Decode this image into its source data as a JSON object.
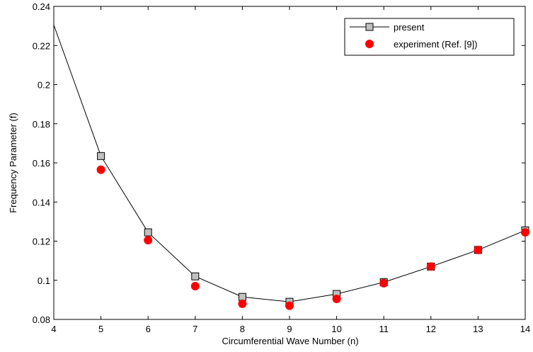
{
  "chart_data": {
    "type": "line",
    "xlabel": "Circumferential Wave Number (n)",
    "ylabel": "Frequency Parameter (f)",
    "xlim": [
      4,
      14
    ],
    "ylim": [
      0.08,
      0.24
    ],
    "x_ticks": [
      4,
      5,
      6,
      7,
      8,
      9,
      10,
      11,
      12,
      13,
      14
    ],
    "x_tick_labels": [
      "4",
      "5",
      "6",
      "7",
      "8",
      "9",
      "10",
      "11",
      "12",
      "13",
      "14"
    ],
    "y_ticks": [
      0.08,
      0.1,
      0.12,
      0.14,
      0.16,
      0.18,
      0.2,
      0.22,
      0.24
    ],
    "y_tick_labels": [
      "0.08",
      "0.1",
      "0.12",
      "0.14",
      "0.16",
      "0.18",
      "0.2",
      "0.22",
      "0.24"
    ],
    "grid": false,
    "legend_position": "top-right",
    "series": [
      {
        "name": "present",
        "style": "line-square",
        "color": "#000000",
        "marker_fill": "#c0c0c0",
        "x": [
          4,
          5,
          6,
          7,
          8,
          9,
          10,
          11,
          12,
          13,
          14
        ],
        "values": [
          0.2305,
          0.1635,
          0.1245,
          0.102,
          0.0915,
          0.089,
          0.093,
          0.099,
          0.107,
          0.1155,
          0.1255
        ]
      },
      {
        "name": "experiment (Ref. [9])",
        "style": "dots",
        "color": "#ff0000",
        "x": [
          5,
          6,
          7,
          8,
          9,
          10,
          11,
          12,
          13,
          14
        ],
        "values": [
          0.1565,
          0.1205,
          0.097,
          0.088,
          0.087,
          0.0905,
          0.0985,
          0.107,
          0.1155,
          0.1245
        ]
      }
    ]
  }
}
